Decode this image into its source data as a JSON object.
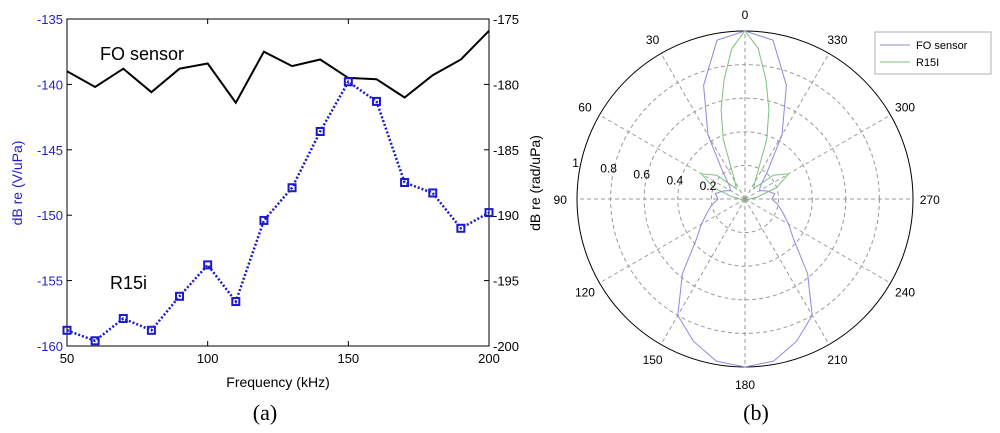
{
  "chart_data": [
    {
      "type": "line",
      "panel_label": "(a)",
      "xlabel": "Frequency (kHz)",
      "ylabel_left": "dB re (V/uPa)",
      "ylabel_right": "dB re (rad/uPa)",
      "xlim": [
        50,
        200
      ],
      "ylim_left": [
        -160,
        -135
      ],
      "ylim_right": [
        -200,
        -175
      ],
      "x_ticks": [
        "50",
        "100",
        "150",
        "200"
      ],
      "y_ticks_left": [
        "-135",
        "-140",
        "-145",
        "-150",
        "-155",
        "-160"
      ],
      "y_ticks_right": [
        "-175",
        "-180",
        "-185",
        "-190",
        "-195",
        "-200"
      ],
      "annotations": [
        "FO sensor",
        "R15i"
      ],
      "colors": {
        "left_axis": "#1f1fcc",
        "fo_sensor": "#000000",
        "r15i": "#1a1acc"
      },
      "series": [
        {
          "axis": "right",
          "x": [
            50,
            60,
            70,
            80,
            90,
            100,
            110,
            120,
            130,
            140,
            150,
            160,
            170,
            180,
            190,
            200
          ],
          "values": [
            -179.0,
            -180.2,
            -178.8,
            -180.6,
            -178.8,
            -178.4,
            -181.4,
            -177.5,
            -178.6,
            -178.1,
            -179.5,
            -179.6,
            -181.0,
            -179.3,
            -178.1,
            -175.9
          ]
        },
        {
          "axis": "left",
          "marker": "square",
          "x": [
            50,
            60,
            70,
            80,
            90,
            100,
            110,
            120,
            130,
            140,
            150,
            160,
            170,
            180,
            190,
            200
          ],
          "values": [
            -158.8,
            -159.6,
            -157.9,
            -158.8,
            -156.2,
            -153.8,
            -156.6,
            -150.4,
            -147.9,
            -143.6,
            -139.8,
            -141.3,
            -147.5,
            -148.3,
            -151.0,
            -149.8
          ]
        }
      ]
    },
    {
      "type": "polar",
      "panel_label": "(b)",
      "angle_ticks": [
        "0",
        "30",
        "60",
        "90",
        "120",
        "150",
        "180",
        "210",
        "240",
        "270",
        "300",
        "330"
      ],
      "radial_ticks": [
        "0.2",
        "0.4",
        "0.6",
        "0.8",
        "1"
      ],
      "rlim": [
        0,
        1
      ],
      "legend_position": "top-right",
      "colors": {
        "fo_sensor": "#8a8ae0",
        "r15i": "#7fbf7f"
      },
      "series": [
        {
          "name": "FO sensor",
          "angle_deg": [
            0,
            10,
            20,
            30,
            40,
            50,
            60,
            70,
            80,
            90,
            100,
            110,
            120,
            130,
            140,
            150,
            160,
            170,
            180,
            190,
            200,
            210,
            220,
            230,
            240,
            250,
            260,
            270,
            280,
            290,
            300,
            310,
            320,
            330,
            340,
            350
          ],
          "r": [
            1.0,
            0.96,
            0.72,
            0.44,
            0.2,
            0.12,
            0.1,
            0.14,
            0.18,
            0.16,
            0.2,
            0.24,
            0.3,
            0.38,
            0.58,
            0.8,
            0.9,
            0.98,
            1.0,
            0.98,
            0.9,
            0.8,
            0.58,
            0.38,
            0.3,
            0.24,
            0.2,
            0.16,
            0.18,
            0.14,
            0.1,
            0.12,
            0.2,
            0.44,
            0.72,
            0.96
          ]
        },
        {
          "name": "R15I",
          "angle_deg": [
            0,
            5,
            10,
            15,
            20,
            30,
            40,
            50,
            60,
            70,
            80,
            90,
            100,
            120,
            150,
            180,
            210,
            240,
            260,
            270,
            280,
            290,
            300,
            310,
            320,
            330,
            340,
            345,
            350,
            355
          ],
          "r": [
            1.0,
            0.9,
            0.72,
            0.55,
            0.38,
            0.12,
            0.08,
            0.22,
            0.3,
            0.2,
            0.08,
            0.03,
            0.02,
            0.02,
            0.02,
            0.02,
            0.02,
            0.02,
            0.02,
            0.03,
            0.08,
            0.2,
            0.3,
            0.22,
            0.08,
            0.12,
            0.38,
            0.55,
            0.72,
            0.9
          ]
        }
      ]
    }
  ]
}
